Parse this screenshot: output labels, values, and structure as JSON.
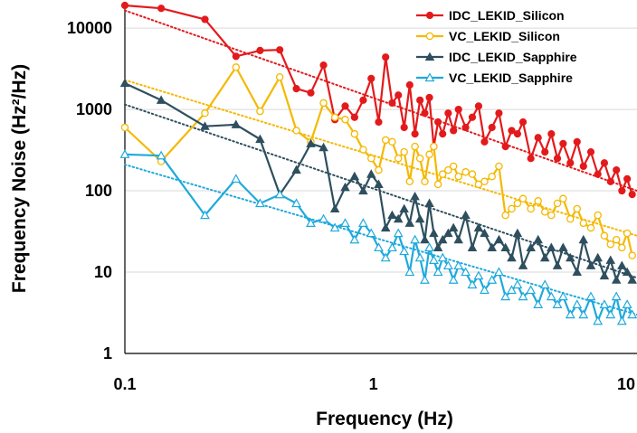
{
  "chart_data": {
    "type": "line",
    "xlabel": "Frequency (Hz)",
    "ylabel": "Frequency Noise (Hz²/Hz)",
    "x_scale": "log",
    "y_scale": "log",
    "xlim": [
      0.1,
      11.5
    ],
    "ylim": [
      1,
      20000
    ],
    "x_ticks": [
      0.1,
      1,
      10
    ],
    "x_tick_labels": [
      "0.1",
      "1",
      "10"
    ],
    "y_ticks": [
      1,
      10,
      100,
      1000,
      10000
    ],
    "y_tick_labels": [
      "1",
      "10",
      "100",
      "1000",
      "10000"
    ],
    "grid": "horizontal",
    "legend_position": "top-right",
    "series": [
      {
        "name": "IDC_LEKID_Silicon",
        "color": "#e31a1c",
        "marker": "filled-circle",
        "x": [
          0.1,
          0.14,
          0.21,
          0.28,
          0.35,
          0.42,
          0.49,
          0.56,
          0.63,
          0.7,
          0.77,
          0.84,
          0.91,
          0.98,
          1.05,
          1.12,
          1.19,
          1.26,
          1.33,
          1.4,
          1.47,
          1.54,
          1.61,
          1.68,
          1.75,
          1.82,
          1.9,
          2.0,
          2.1,
          2.2,
          2.35,
          2.5,
          2.65,
          2.8,
          3.0,
          3.2,
          3.4,
          3.6,
          3.8,
          4.0,
          4.3,
          4.6,
          4.9,
          5.2,
          5.5,
          5.8,
          6.2,
          6.6,
          7.0,
          7.5,
          8.0,
          8.5,
          9.0,
          9.5,
          10.0,
          10.5,
          11.0
        ],
        "y": [
          19000,
          17500,
          12800,
          4500,
          5300,
          5400,
          1800,
          1600,
          3500,
          750,
          1100,
          800,
          1300,
          2400,
          700,
          4400,
          1200,
          1500,
          600,
          2000,
          500,
          1300,
          900,
          1400,
          350,
          700,
          500,
          900,
          550,
          1000,
          600,
          800,
          1100,
          400,
          600,
          900,
          350,
          550,
          500,
          700,
          250,
          450,
          300,
          500,
          250,
          380,
          220,
          400,
          200,
          300,
          160,
          220,
          130,
          180,
          100,
          140,
          90
        ]
      },
      {
        "name": "VC_LEKID_Silicon",
        "color": "#f5b800",
        "marker": "open-circle",
        "x": [
          0.1,
          0.14,
          0.21,
          0.28,
          0.35,
          0.42,
          0.49,
          0.56,
          0.63,
          0.7,
          0.77,
          0.84,
          0.91,
          0.98,
          1.05,
          1.12,
          1.19,
          1.26,
          1.33,
          1.4,
          1.47,
          1.54,
          1.61,
          1.68,
          1.75,
          1.82,
          1.9,
          2.0,
          2.1,
          2.2,
          2.35,
          2.5,
          2.65,
          2.8,
          3.0,
          3.2,
          3.4,
          3.6,
          3.8,
          4.0,
          4.3,
          4.6,
          4.9,
          5.2,
          5.5,
          5.8,
          6.2,
          6.6,
          7.0,
          7.5,
          8.0,
          8.5,
          9.0,
          9.5,
          10.0,
          10.5,
          11.0
        ],
        "y": [
          600,
          230,
          900,
          3300,
          950,
          2500,
          550,
          400,
          1200,
          800,
          750,
          500,
          320,
          250,
          180,
          420,
          400,
          250,
          300,
          130,
          350,
          250,
          130,
          280,
          350,
          120,
          160,
          180,
          200,
          150,
          170,
          160,
          120,
          130,
          150,
          200,
          50,
          60,
          70,
          80,
          60,
          75,
          55,
          50,
          70,
          80,
          45,
          60,
          40,
          35,
          50,
          28,
          22,
          25,
          20,
          30,
          16
        ]
      },
      {
        "name": "IDC_LEKID_Sapphire",
        "color": "#2e4f5e",
        "marker": "filled-triangle",
        "x": [
          0.1,
          0.14,
          0.21,
          0.28,
          0.35,
          0.42,
          0.49,
          0.56,
          0.63,
          0.7,
          0.77,
          0.84,
          0.91,
          0.98,
          1.05,
          1.12,
          1.19,
          1.26,
          1.33,
          1.4,
          1.47,
          1.54,
          1.61,
          1.68,
          1.75,
          1.82,
          1.9,
          2.0,
          2.1,
          2.2,
          2.35,
          2.5,
          2.65,
          2.8,
          3.0,
          3.2,
          3.4,
          3.6,
          3.8,
          4.0,
          4.3,
          4.6,
          4.9,
          5.2,
          5.5,
          5.8,
          6.2,
          6.6,
          7.0,
          7.5,
          8.0,
          8.5,
          9.0,
          9.5,
          10.0,
          10.5,
          11.0
        ],
        "y": [
          2100,
          1300,
          620,
          650,
          430,
          90,
          180,
          380,
          340,
          60,
          110,
          150,
          100,
          160,
          120,
          35,
          50,
          45,
          60,
          40,
          85,
          45,
          25,
          70,
          30,
          20,
          25,
          30,
          35,
          25,
          50,
          20,
          35,
          30,
          20,
          25,
          20,
          15,
          30,
          12,
          20,
          25,
          15,
          20,
          12,
          20,
          15,
          10,
          25,
          12,
          15,
          9,
          14,
          8,
          12,
          10,
          8
        ]
      },
      {
        "name": "VC_LEKID_Sapphire",
        "color": "#1fa9dc",
        "marker": "open-triangle",
        "x": [
          0.1,
          0.14,
          0.21,
          0.28,
          0.35,
          0.42,
          0.49,
          0.56,
          0.63,
          0.7,
          0.77,
          0.84,
          0.91,
          0.98,
          1.05,
          1.12,
          1.19,
          1.26,
          1.33,
          1.4,
          1.47,
          1.54,
          1.61,
          1.68,
          1.75,
          1.82,
          1.9,
          2.0,
          2.1,
          2.2,
          2.35,
          2.5,
          2.65,
          2.8,
          3.0,
          3.2,
          3.4,
          3.6,
          3.8,
          4.0,
          4.3,
          4.6,
          4.9,
          5.2,
          5.5,
          5.8,
          6.2,
          6.6,
          7.0,
          7.5,
          8.0,
          8.5,
          9.0,
          9.5,
          10.0,
          10.5,
          11.0
        ],
        "y": [
          280,
          270,
          50,
          140,
          70,
          90,
          70,
          40,
          45,
          35,
          40,
          25,
          40,
          30,
          20,
          15,
          20,
          30,
          18,
          10,
          25,
          15,
          8,
          20,
          14,
          10,
          15,
          12,
          8,
          12,
          10,
          7,
          9,
          6,
          8,
          10,
          5,
          6,
          7,
          5,
          6,
          4,
          7,
          5,
          4,
          5,
          3,
          4,
          3,
          5,
          2.5,
          4,
          3,
          5,
          2.5,
          4,
          3
        ]
      }
    ],
    "trendlines": [
      {
        "series": "IDC_LEKID_Silicon",
        "style": "dotted",
        "x": [
          0.1,
          11.5
        ],
        "y": [
          16500,
          100
        ]
      },
      {
        "series": "VC_LEKID_Silicon",
        "style": "dotted",
        "x": [
          0.1,
          11.5
        ],
        "y": [
          2300,
          28
        ]
      },
      {
        "series": "IDC_LEKID_Sapphire",
        "style": "dotted",
        "x": [
          0.1,
          11.5
        ],
        "y": [
          1150,
          8.5
        ]
      },
      {
        "series": "VC_LEKID_Sapphire",
        "style": "dotted",
        "x": [
          0.1,
          11.5
        ],
        "y": [
          210,
          3
        ]
      }
    ]
  }
}
